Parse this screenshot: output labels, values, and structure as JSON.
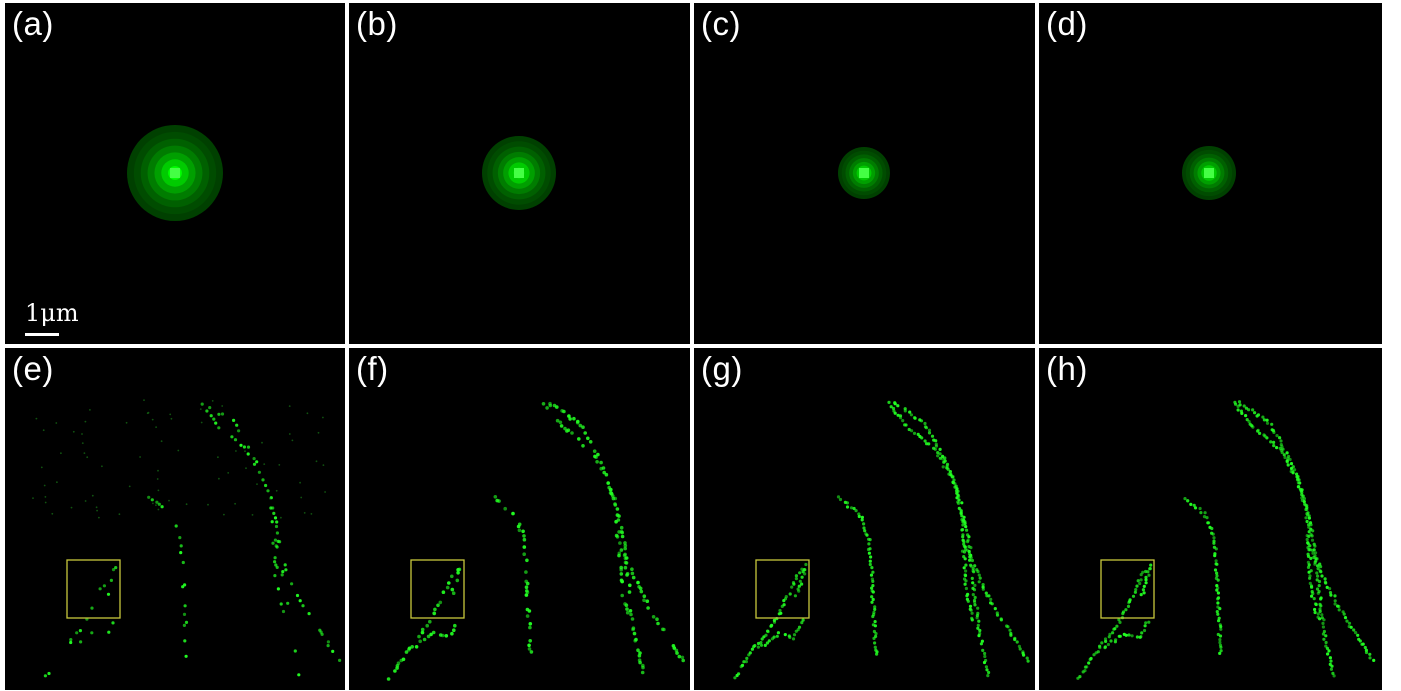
{
  "panels": [
    {
      "label": "(a)",
      "kind": "psf",
      "level": 4
    },
    {
      "label": "(b)",
      "kind": "psf",
      "level": 3
    },
    {
      "label": "(c)",
      "kind": "psf",
      "level": 2
    },
    {
      "label": "(d)",
      "kind": "psf",
      "level": 1
    },
    {
      "label": "(e)",
      "kind": "filaments",
      "reconstruction": "sparse"
    },
    {
      "label": "(f)",
      "kind": "filaments",
      "reconstruction": "partial"
    },
    {
      "label": "(g)",
      "kind": "filaments",
      "reconstruction": "dense"
    },
    {
      "label": "(h)",
      "kind": "filaments",
      "reconstruction": "dense"
    }
  ],
  "scale_bar": {
    "label": "1μm"
  },
  "colors": {
    "background": "#000000",
    "signal": "#22ff22",
    "roi_box": "#c8c83c",
    "label": "#ffffff",
    "divider": "#ffffff"
  }
}
